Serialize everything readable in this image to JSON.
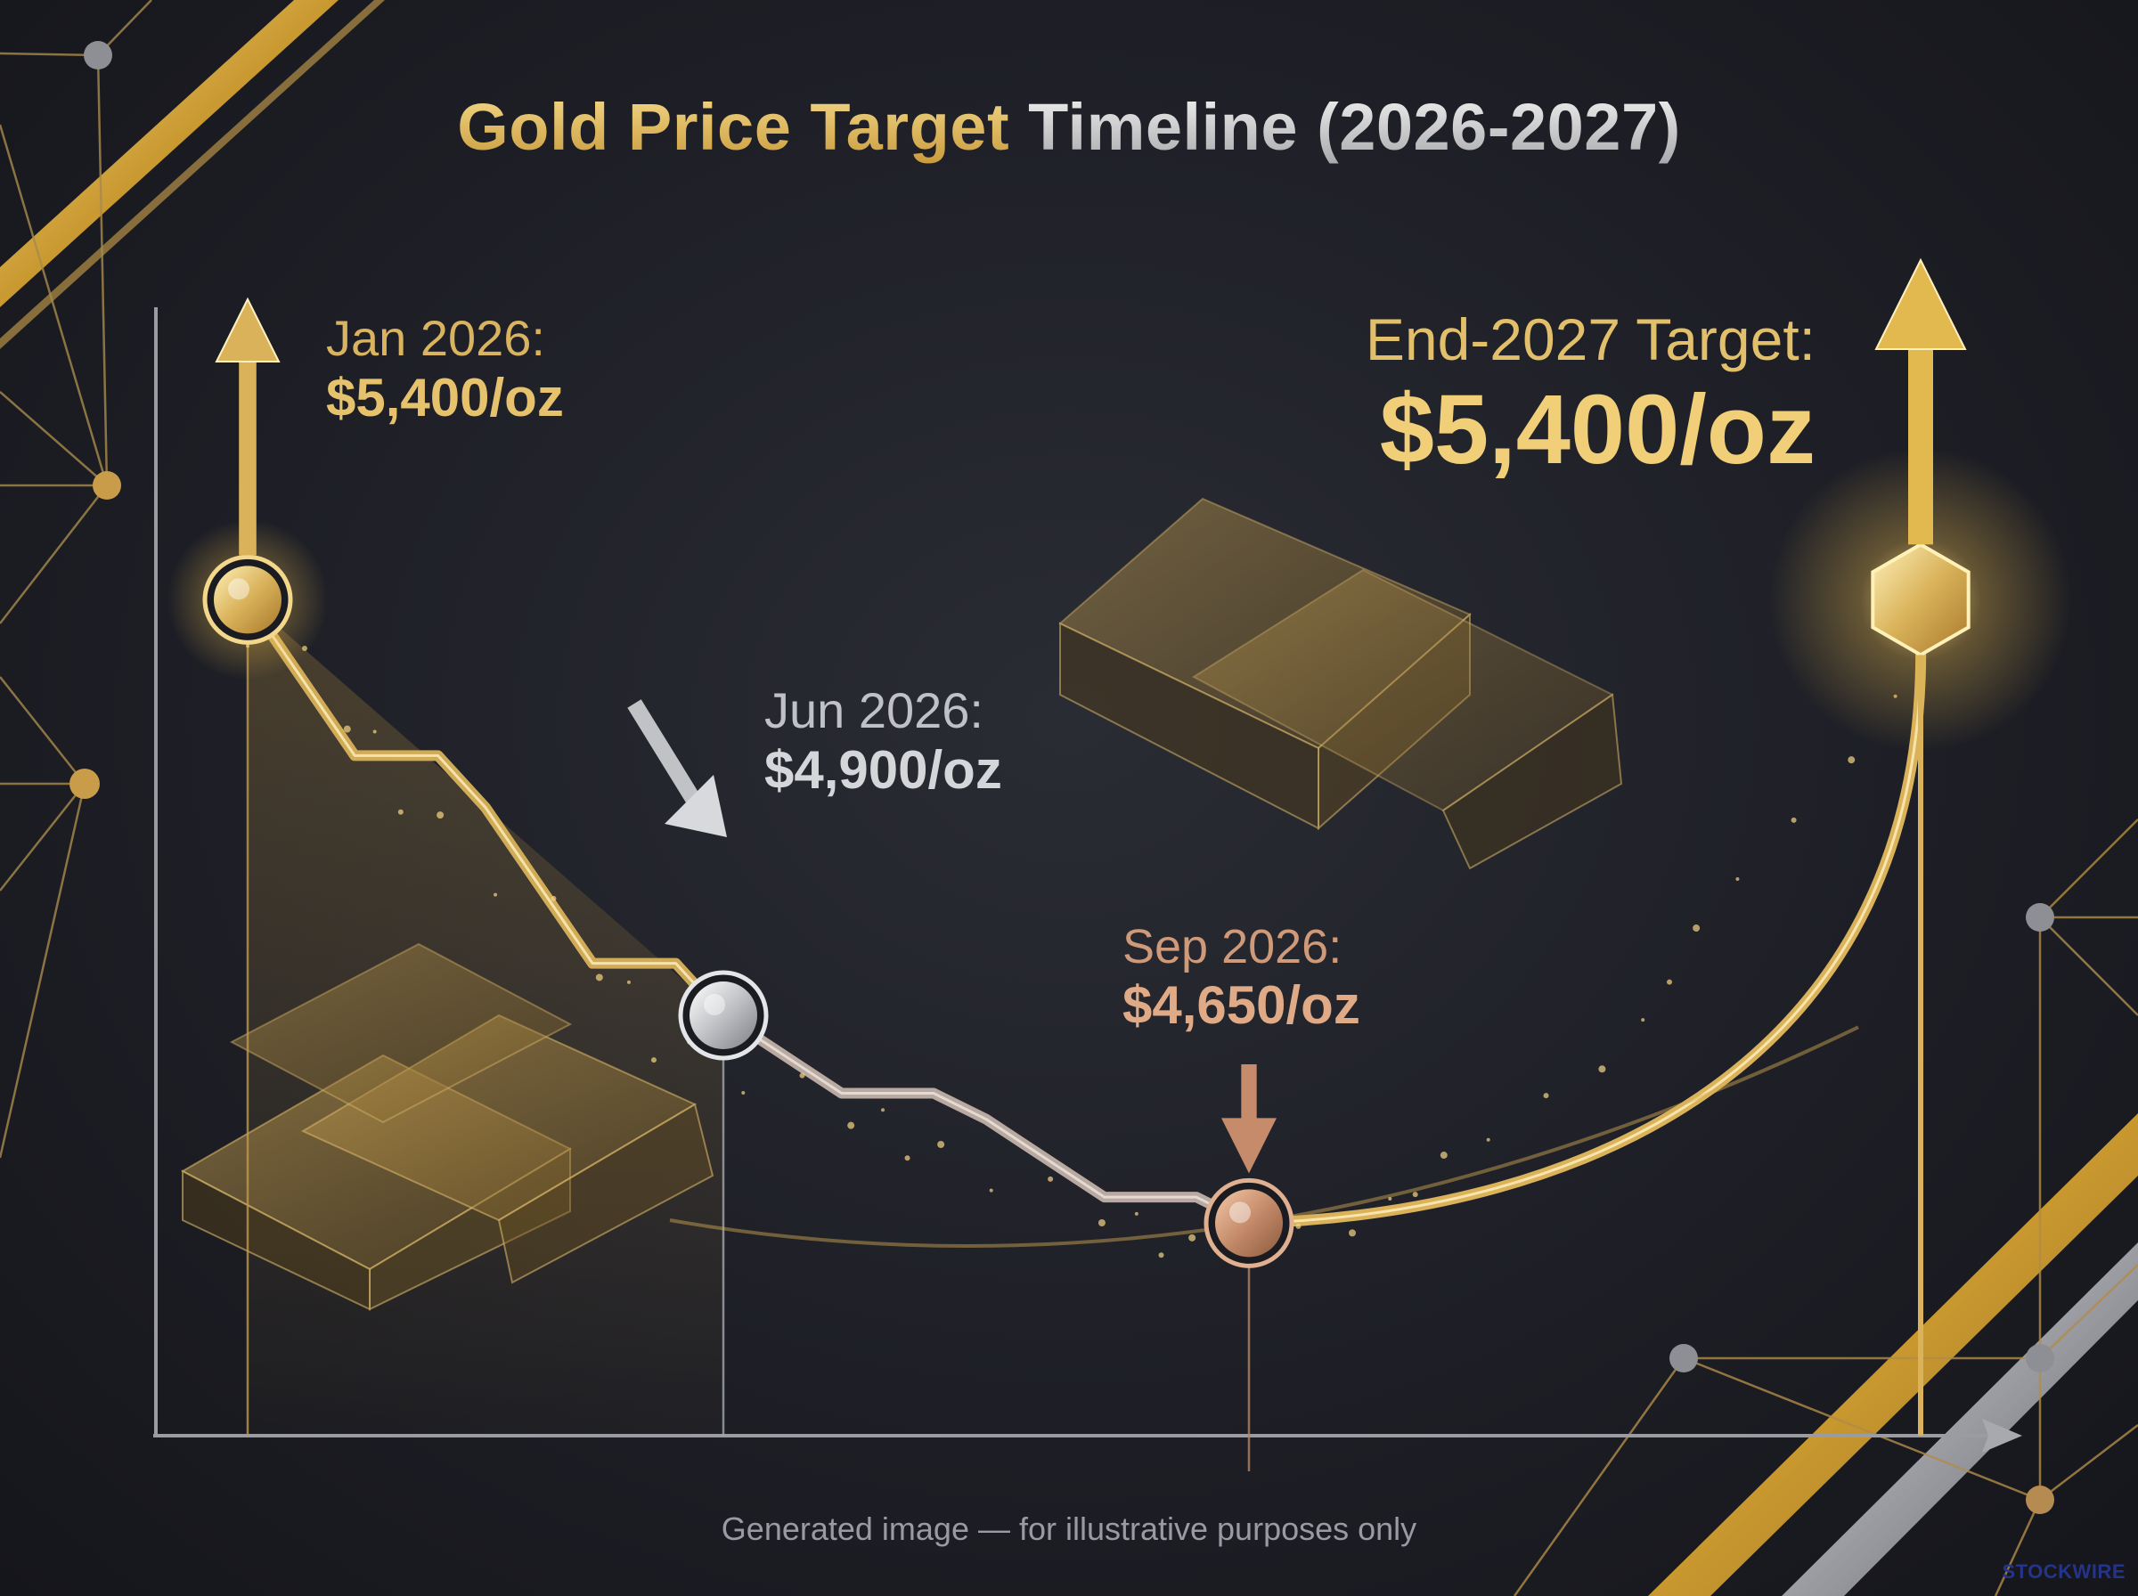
{
  "title_part1": "Gold Price",
  "title_part2": "Target",
  "title_part3": "Timeline (2026-2027)",
  "chart_data": {
    "type": "line",
    "title": "Gold Price Target Timeline (2026-2027)",
    "xlabel": "",
    "ylabel": "",
    "points": [
      {
        "date_label": "Jan 2026:",
        "price_label": "$5,400/oz",
        "value": 5400,
        "direction": "up"
      },
      {
        "date_label": "Jun 2026:",
        "price_label": "$4,900/oz",
        "value": 4900,
        "direction": "down"
      },
      {
        "date_label": "Sep 2026:",
        "price_label": "$4,650/oz",
        "value": 4650,
        "direction": "down"
      },
      {
        "date_label": "End-2027 Target:",
        "price_label": "$5,400/oz",
        "value": 5400,
        "direction": "up"
      }
    ],
    "ylim": [
      4300,
      5800
    ],
    "grid": false,
    "colors": {
      "gold": "#d9b25a",
      "silver": "#c0c2c6",
      "bronze": "#c58b6a"
    }
  },
  "footer": "Generated image — for illustrative purposes only",
  "brand": "STOCKWIRE"
}
